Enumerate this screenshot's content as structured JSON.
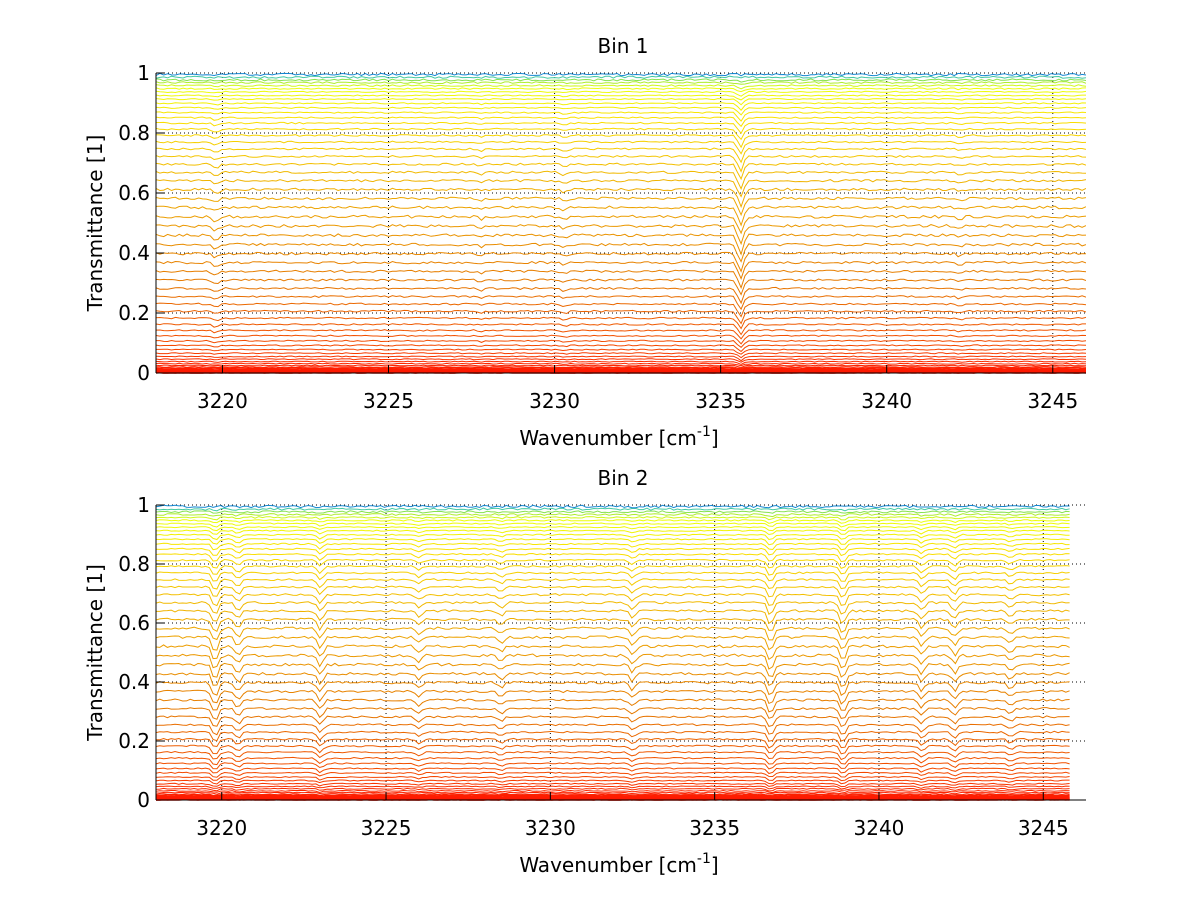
{
  "chart_data": [
    {
      "type": "line",
      "title": "Bin 1",
      "xlabel": "Wavenumber [cm",
      "xlabel_sup": "-1",
      "xlabel_end": "]",
      "ylabel": "Transmittance [1]",
      "xlim": [
        3218,
        3246
      ],
      "ylim": [
        0,
        1
      ],
      "x_data_range": [
        3218,
        3246
      ],
      "xticks": [
        3220,
        3225,
        3230,
        3235,
        3240,
        3245
      ],
      "xtick_labels": [
        "3220",
        "3225",
        "3230",
        "3235",
        "3240",
        "3245"
      ],
      "yticks": [
        0,
        0.2,
        0.4,
        0.6,
        0.8,
        1
      ],
      "ytick_labels": [
        "0",
        "0.2",
        "0.4",
        "0.6",
        "0.8",
        "1"
      ],
      "grid": "dotted",
      "series_count": 60,
      "series_levels": [
        0.0,
        0.001,
        0.002,
        0.003,
        0.005,
        0.007,
        0.009,
        0.012,
        0.016,
        0.02,
        0.025,
        0.031,
        0.038,
        0.046,
        0.055,
        0.066,
        0.078,
        0.092,
        0.107,
        0.124,
        0.142,
        0.162,
        0.183,
        0.206,
        0.23,
        0.255,
        0.282,
        0.31,
        0.339,
        0.368,
        0.398,
        0.428,
        0.459,
        0.49,
        0.521,
        0.552,
        0.582,
        0.612,
        0.641,
        0.669,
        0.696,
        0.722,
        0.747,
        0.77,
        0.792,
        0.813,
        0.833,
        0.851,
        0.868,
        0.884,
        0.899,
        0.913,
        0.925,
        0.937,
        0.948,
        0.958,
        0.968,
        0.977,
        0.986,
        0.995
      ],
      "colormap": "red (low) to yellow to green/blue (high)",
      "absorption_features": [
        {
          "x": 3235.6,
          "relative_depth": 0.06
        },
        {
          "x": 3219.8,
          "relative_depth": 0.015
        },
        {
          "x": 3230.3,
          "relative_depth": 0.01
        },
        {
          "x": 3227.8,
          "relative_depth": 0.008
        },
        {
          "x": 3242.2,
          "relative_depth": 0.008
        }
      ]
    },
    {
      "type": "line",
      "title": "Bin 2",
      "xlabel": "Wavenumber [cm",
      "xlabel_sup": "-1",
      "xlabel_end": "]",
      "ylabel": "Transmittance [1]",
      "xlim": [
        3218,
        3246.3
      ],
      "ylim": [
        0,
        1
      ],
      "x_data_range": [
        3218,
        3245.8
      ],
      "xticks": [
        3220,
        3225,
        3230,
        3235,
        3240,
        3245
      ],
      "xtick_labels": [
        "3220",
        "3225",
        "3230",
        "3235",
        "3240",
        "3245"
      ],
      "yticks": [
        0,
        0.2,
        0.4,
        0.6,
        0.8,
        1
      ],
      "ytick_labels": [
        "0",
        "0.2",
        "0.4",
        "0.6",
        "0.8",
        "1"
      ],
      "grid": "dotted",
      "series_count": 60,
      "series_levels": [
        0.0,
        0.001,
        0.002,
        0.003,
        0.005,
        0.007,
        0.009,
        0.012,
        0.016,
        0.02,
        0.025,
        0.031,
        0.038,
        0.046,
        0.055,
        0.066,
        0.078,
        0.092,
        0.107,
        0.124,
        0.142,
        0.162,
        0.183,
        0.206,
        0.23,
        0.255,
        0.282,
        0.31,
        0.339,
        0.368,
        0.398,
        0.428,
        0.459,
        0.49,
        0.521,
        0.552,
        0.582,
        0.612,
        0.641,
        0.669,
        0.696,
        0.722,
        0.747,
        0.77,
        0.792,
        0.813,
        0.833,
        0.851,
        0.868,
        0.884,
        0.899,
        0.913,
        0.925,
        0.937,
        0.948,
        0.958,
        0.968,
        0.977,
        0.986,
        0.995
      ],
      "colormap": "red (low) to yellow to green/blue (high)",
      "absorption_features": [
        {
          "x": 3219.8,
          "relative_depth": 0.05
        },
        {
          "x": 3220.5,
          "relative_depth": 0.03
        },
        {
          "x": 3223.0,
          "relative_depth": 0.035
        },
        {
          "x": 3226.0,
          "relative_depth": 0.02
        },
        {
          "x": 3228.5,
          "relative_depth": 0.02
        },
        {
          "x": 3232.5,
          "relative_depth": 0.025
        },
        {
          "x": 3236.7,
          "relative_depth": 0.05
        },
        {
          "x": 3238.9,
          "relative_depth": 0.05
        },
        {
          "x": 3241.3,
          "relative_depth": 0.03
        },
        {
          "x": 3242.3,
          "relative_depth": 0.03
        },
        {
          "x": 3244.0,
          "relative_depth": 0.02
        }
      ]
    }
  ]
}
